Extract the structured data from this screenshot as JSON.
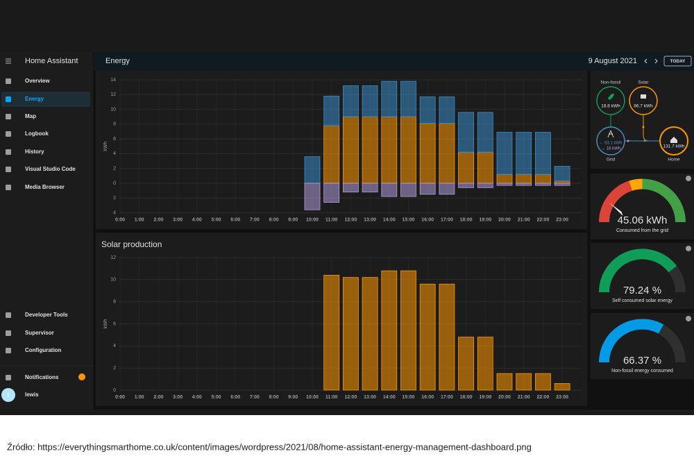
{
  "sidebar": {
    "title": "Home Assistant",
    "items": [
      "Overview",
      "Energy",
      "Map",
      "Logbook",
      "History",
      "Visual Studio Code",
      "Media Browser"
    ],
    "bottom_items": [
      "Developer Tools",
      "Supervisor",
      "Configuration",
      "Notifications",
      "lewis"
    ],
    "avatar": "l"
  },
  "header": {
    "title": "Energy",
    "date": "9 August 2021",
    "today": "TODAY"
  },
  "chart_data": [
    {
      "type": "bar",
      "y_label": "kWh",
      "categories": [
        "0:00",
        "1:00",
        "2:00",
        "3:00",
        "4:00",
        "5:00",
        "6:00",
        "7:00",
        "8:00",
        "9:00",
        "10:00",
        "11:00",
        "12:00",
        "13:00",
        "14:00",
        "15:00",
        "16:00",
        "17:00",
        "18:00",
        "19:00",
        "20:00",
        "21:00",
        "22:00",
        "23:00"
      ],
      "series": [
        {
          "color": "#ff9800",
          "values": [
            0,
            0,
            0,
            0,
            0,
            0,
            0,
            0,
            0,
            0,
            0,
            7.8,
            9.0,
            9.0,
            9.0,
            9.0,
            8.1,
            8.1,
            4.2,
            4.2,
            1.2,
            1.2,
            1.2,
            0.3
          ]
        },
        {
          "color": "#3a8cc8",
          "values": [
            0,
            0,
            0,
            0,
            0,
            0,
            0,
            0,
            0,
            0,
            3.6,
            4.0,
            4.2,
            4.2,
            4.8,
            4.8,
            3.6,
            3.6,
            5.4,
            5.4,
            5.7,
            5.7,
            5.7,
            2.0
          ]
        },
        {
          "color": "#b39ddb",
          "values": [
            0,
            0,
            0,
            0,
            0,
            0,
            0,
            0,
            0,
            0,
            -3.6,
            -2.6,
            -1.2,
            -1.2,
            -1.8,
            -1.8,
            -1.5,
            -1.5,
            -0.6,
            -0.6,
            -0.3,
            -0.3,
            -0.3,
            -0.3
          ]
        }
      ],
      "ylim": [
        -4,
        14
      ],
      "yticks": [
        {
          "value": -4,
          "label": "4"
        },
        {
          "value": -2,
          "label": "2"
        },
        0,
        2,
        4,
        6,
        8,
        10,
        12,
        14
      ],
      "grid": true
    },
    {
      "type": "bar",
      "title": "Solar production",
      "y_label": "kWh",
      "categories": [
        "0:00",
        "1:00",
        "2:00",
        "3:00",
        "4:00",
        "5:00",
        "6:00",
        "7:00",
        "8:00",
        "9:00",
        "10:00",
        "11:00",
        "12:00",
        "13:00",
        "14:00",
        "15:00",
        "16:00",
        "17:00",
        "18:00",
        "19:00",
        "20:00",
        "21:00",
        "22:00",
        "23:00"
      ],
      "series": [
        {
          "color": "#ff9800",
          "values": [
            0,
            0,
            0,
            0,
            0,
            0,
            0,
            0,
            0,
            0,
            0,
            10.4,
            10.2,
            10.2,
            10.8,
            10.8,
            9.6,
            9.6,
            4.8,
            4.8,
            1.5,
            1.5,
            1.5,
            0.6
          ]
        }
      ],
      "ylim": [
        0,
        12
      ],
      "yticks": [
        0,
        2,
        4,
        6,
        8,
        10,
        12
      ],
      "grid": true
    }
  ],
  "distribution": {
    "non_fossil": {
      "label": "Non-fossil",
      "value": "18.8 kWh"
    },
    "solar": {
      "label": "Solar",
      "value": "86.7 kWh"
    },
    "grid": {
      "label": "Grid",
      "in": "← 63.1 kWh",
      "out": "→ 18 kWh"
    },
    "home": {
      "label": "Home",
      "value": "131.7 kWh"
    }
  },
  "gauges": [
    {
      "value": 45.06,
      "unit": "kWh",
      "label": "Consumed from the grid"
    },
    {
      "value": 79.24,
      "unit": "%",
      "label": "Self consumed solar energy",
      "color": "#0f9d58"
    },
    {
      "value": 66.37,
      "unit": "%",
      "label": "Non-fossil energy consumed",
      "color": "#039be5"
    }
  ],
  "caption": "Źródło: https://everythingsmarthome.co.uk/content/images/wordpress/2021/08/home-assistant-energy-management-dashboard.png"
}
